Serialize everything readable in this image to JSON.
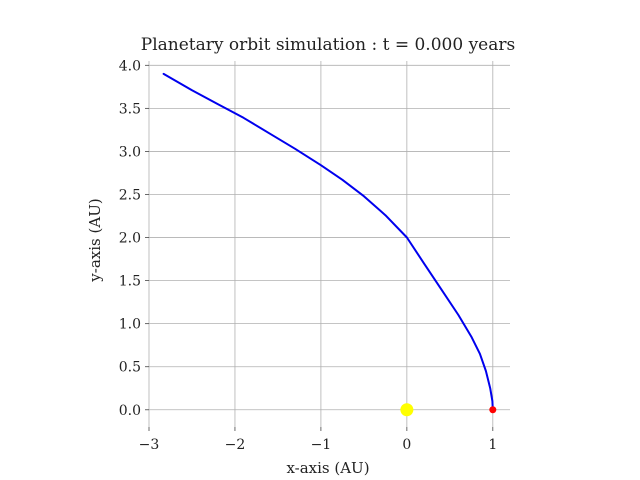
{
  "chart_data": {
    "type": "line",
    "title": "Planetary orbit simulation : t = 0.000 years",
    "xlabel": "x-axis (AU)",
    "ylabel": "y-axis (AU)",
    "xlim": [
      -3,
      1.2
    ],
    "ylim": [
      -0.2,
      4.05
    ],
    "grid": true,
    "x_ticks": [
      -3,
      -2,
      -1,
      0,
      1
    ],
    "x_tick_labels": [
      "−3",
      "−2",
      "−1",
      "0",
      "1"
    ],
    "y_ticks": [
      0.0,
      0.5,
      1.0,
      1.5,
      2.0,
      2.5,
      3.0,
      3.5,
      4.0
    ],
    "y_tick_labels": [
      "0.0",
      "0.5",
      "1.0",
      "1.5",
      "2.0",
      "2.5",
      "3.0",
      "3.5",
      "4.0"
    ],
    "series": [
      {
        "color": "#0000ee",
        "x": [
          1.0,
          0.995,
          0.97,
          0.92,
          0.85,
          0.75,
          0.6,
          0.4,
          0.2,
          0.0,
          -0.25,
          -0.5,
          -0.75,
          -1.0,
          -1.3,
          -1.6,
          -1.9,
          -2.2,
          -2.5,
          -2.83
        ],
        "y": [
          0.0,
          0.1,
          0.25,
          0.45,
          0.65,
          0.85,
          1.1,
          1.4,
          1.7,
          2.0,
          2.26,
          2.48,
          2.67,
          2.84,
          3.03,
          3.21,
          3.39,
          3.55,
          3.71,
          3.9
        ]
      }
    ],
    "markers": [
      {
        "kind": "sun",
        "x": 0.0,
        "y": 0.0,
        "color": "#ffff00"
      },
      {
        "kind": "planet",
        "x": 1.0,
        "y": 0.0,
        "color": "#ff0000"
      }
    ]
  }
}
